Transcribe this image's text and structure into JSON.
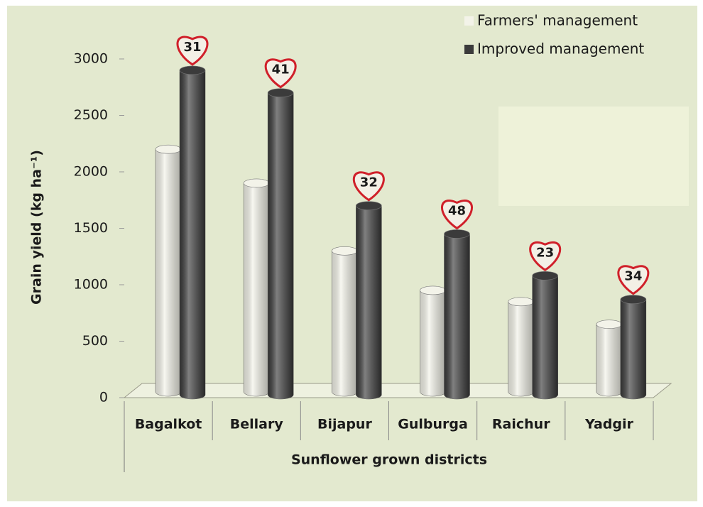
{
  "chart_data": {
    "type": "bar",
    "y_axis_label": "Grain  yield (kg ha⁻¹)",
    "x_axis_label": "Sunflower grown districts",
    "categories": [
      "Bagalkot",
      "Bellary",
      "Bijapur",
      "Gulburga",
      "Raichur",
      "Yadgir"
    ],
    "series": [
      {
        "name": "Farmers' management",
        "color": "#f3f3e9",
        "values": [
          2200,
          1900,
          1300,
          950,
          850,
          650
        ]
      },
      {
        "name": "Improved management",
        "color": "#3b3b3b",
        "values": [
          2900,
          2700,
          1700,
          1450,
          1080,
          870
        ]
      }
    ],
    "annotations": [
      31,
      41,
      32,
      48,
      23,
      34
    ],
    "ylim": [
      0,
      3000
    ],
    "yticks": [
      0,
      500,
      1000,
      1500,
      2000,
      2500,
      3000
    ],
    "legend": "top-right"
  }
}
